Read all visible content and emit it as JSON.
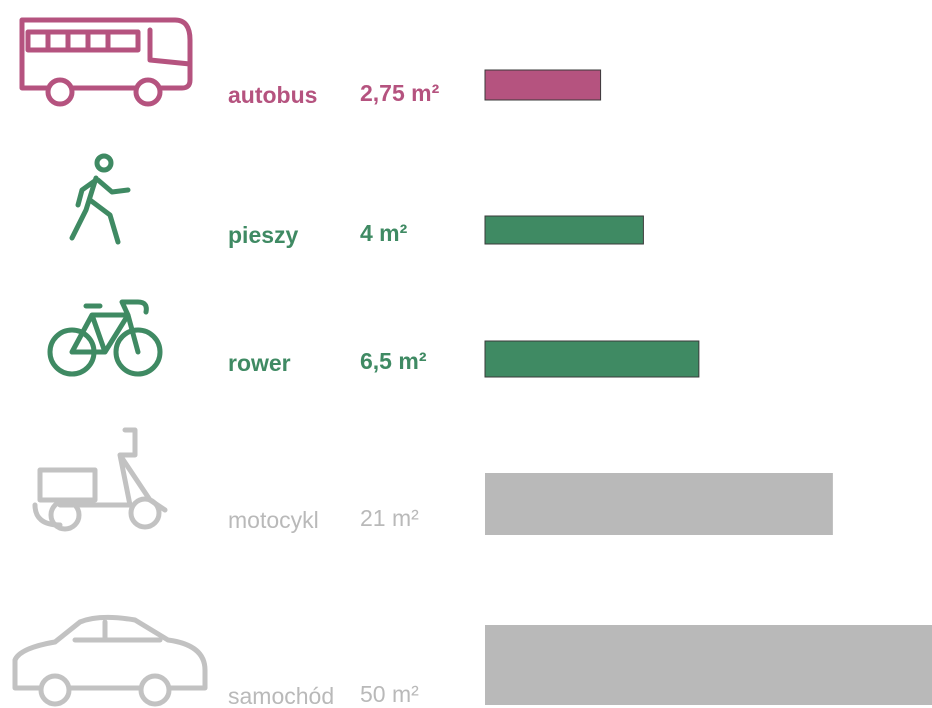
{
  "chart_data": {
    "type": "bar",
    "categories": [
      "autobus",
      "pieszy",
      "rower",
      "motocykl",
      "samochód"
    ],
    "values": [
      2.75,
      4,
      6.5,
      21,
      50
    ],
    "value_labels": [
      "2,75 m²",
      "4 m²",
      "6,5 m²",
      "21 m²",
      "50 m²"
    ],
    "colors": [
      "#b5537f",
      "#3f8a63",
      "#3f8a63",
      "#b9b9b9",
      "#b9b9b9"
    ],
    "xlim": [
      1,
      50
    ],
    "log_scale": true
  }
}
